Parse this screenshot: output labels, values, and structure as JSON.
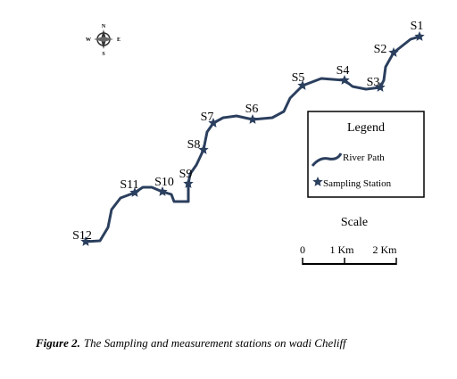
{
  "compass": {
    "north": "N",
    "south": "S",
    "east": "E",
    "west": "W"
  },
  "stations": [
    "S1",
    "S2",
    "S3",
    "S4",
    "S5",
    "S6",
    "S7",
    "S8",
    "S9",
    "S10",
    "S11",
    "S12"
  ],
  "legend": {
    "title": "Legend",
    "river": "River Path",
    "station": "Sampling Station"
  },
  "scale": {
    "title": "Scale",
    "labels": [
      "0",
      "1 Km",
      "2 Km"
    ]
  },
  "caption": {
    "label": "Figure 2.",
    "text": "The Sampling and measurement stations on wadi Cheliff"
  }
}
